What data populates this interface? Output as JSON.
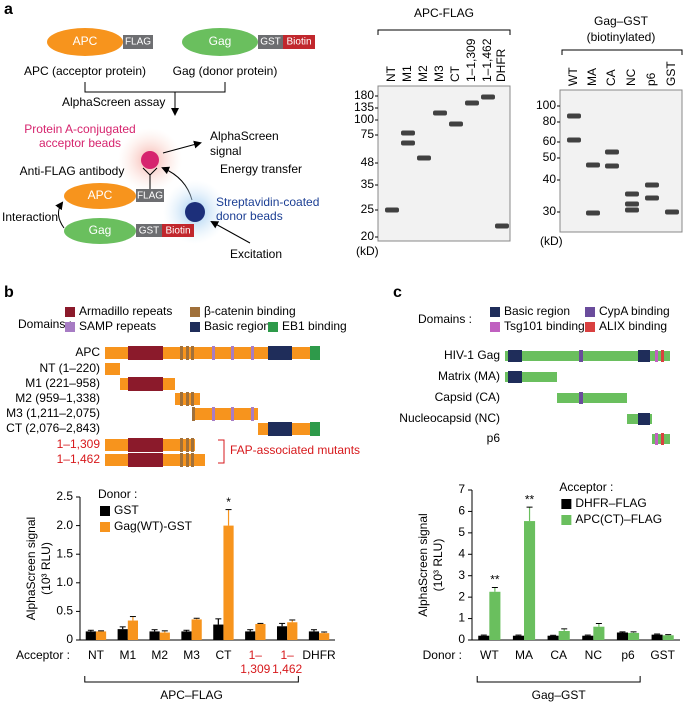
{
  "panel_labels": [
    "a",
    "b",
    "c"
  ],
  "panel_a": {
    "apc": "APC",
    "flag": "FLAG",
    "gag": "Gag",
    "gst": "GST",
    "biotin": "Biotin",
    "apc_caption": "APC (acceptor protein)",
    "gag_caption": "Gag (donor protein)",
    "assay": "AlphaScreen assay",
    "acceptor_beads": [
      "Protein A-conjugated",
      "acceptor beads"
    ],
    "signal": [
      "AlphaScreen",
      "signal"
    ],
    "antibody": "Anti-FLAG antibody",
    "energy": "Energy transfer",
    "donor_beads": [
      "Streptavidin-coated",
      "donor beads"
    ],
    "interaction": "Interaction",
    "excitation": "Excitation"
  },
  "blot_apc": {
    "title": [
      "APC-FLAG"
    ],
    "lanes": [
      "NT",
      "M1",
      "M2",
      "M3",
      "CT",
      "1–1,309",
      "1–1,462",
      "DHFR"
    ],
    "markers": [
      "180",
      "135",
      "100",
      "75",
      "48",
      "35",
      "25",
      "20"
    ],
    "unit": "(kD)"
  },
  "blot_gag": {
    "title": [
      "Gag–GST",
      "(biotinylated)"
    ],
    "lanes": [
      "WT",
      "MA",
      "CA",
      "NC",
      "p6",
      "GST"
    ],
    "markers": [
      "100",
      "80",
      "60",
      "50",
      "40",
      "30"
    ],
    "unit": "(kD)"
  },
  "domains_b": {
    "label": "Domains :",
    "legend": [
      {
        "name": "Armadillo repeats",
        "color": "#8b1a2b"
      },
      {
        "name": "β-catenin binding",
        "color": "#a0703a"
      },
      {
        "name": "SAMP repeats",
        "color": "#a77cc4"
      },
      {
        "name": "Basic region",
        "color": "#1f2d5a"
      },
      {
        "name": "EB1 binding",
        "color": "#2e9a4a"
      }
    ],
    "rows": [
      {
        "label": "APC",
        "color": "#000000"
      },
      {
        "label": "NT (1–220)",
        "color": "#000000"
      },
      {
        "label": "M1 (221–958)",
        "color": "#000000"
      },
      {
        "label": "M2 (959–1,338)",
        "color": "#000000"
      },
      {
        "label": "M3 (1,211–2,075)",
        "color": "#000000"
      },
      {
        "label": "CT (2,076–2,843)",
        "color": "#000000"
      },
      {
        "label": "1–1,309",
        "color": "#d7191c"
      },
      {
        "label": "1–1,462",
        "color": "#d7191c"
      }
    ],
    "bar_color": "#f7941d",
    "annotation": "FAP-associated mutants"
  },
  "domains_c": {
    "label": "Domains :",
    "legend": [
      {
        "name": "Basic region",
        "color": "#1f2d5a"
      },
      {
        "name": "CypA binding",
        "color": "#6a4c9c"
      },
      {
        "name": "Tsg101 binding",
        "color": "#c060c0"
      },
      {
        "name": "ALIX binding",
        "color": "#d94040"
      }
    ],
    "rows": [
      {
        "label": "HIV-1 Gag",
        "color": "#000000"
      },
      {
        "label": "Matrix (MA)",
        "color": "#000000"
      },
      {
        "label": "Capsid (CA)",
        "color": "#000000"
      },
      {
        "label": "Nucleocapsid (NC)",
        "color": "#000000"
      },
      {
        "label": "p6",
        "color": "#000000"
      }
    ],
    "bar_color": "#6abf5e"
  },
  "chart_data": [
    {
      "type": "bar",
      "ylabel": [
        "AlphaScreen signal",
        "(10³ RLU)"
      ],
      "xlabel": "Acceptor :",
      "group_label": "APC–FLAG",
      "categories": [
        "NT",
        "M1",
        "M2",
        "M3",
        "CT",
        "1–1,309",
        "1–1,462",
        "DHFR"
      ],
      "category_colors": [
        "#000000",
        "#000000",
        "#000000",
        "#000000",
        "#000000",
        "#d7191c",
        "#d7191c",
        "#000000"
      ],
      "ylim": [
        0,
        2.5
      ],
      "yticks": [
        0,
        0.5,
        {
          "value": 1,
          "label": "1.0"
        },
        1.5,
        {
          "value": 2,
          "label": "2.0"
        },
        2.5
      ],
      "legend_title": "Donor :",
      "legend": "upper left",
      "series": [
        {
          "name": "GST",
          "color": "#000000",
          "values": [
            0.15,
            0.19,
            0.15,
            0.15,
            0.27,
            0.15,
            0.24,
            0.15
          ],
          "errors": [
            0.02,
            0.04,
            0.03,
            0.02,
            0.1,
            0.03,
            0.05,
            0.03
          ]
        },
        {
          "name": "Gag(WT)-GST",
          "color": "#f7941d",
          "values": [
            0.15,
            0.34,
            0.13,
            0.36,
            2.0,
            0.28,
            0.31,
            0.12
          ],
          "errors": [
            0.01,
            0.07,
            0.03,
            0.02,
            0.28,
            0.01,
            0.04,
            0.02
          ]
        }
      ],
      "annotations": [
        {
          "label": "*",
          "category": "CT"
        }
      ]
    },
    {
      "type": "bar",
      "ylabel": [
        "AlphaScreen signal",
        "(10³ RLU)"
      ],
      "xlabel": "Donor :",
      "group_label": "Gag–GST",
      "categories": [
        "WT",
        "MA",
        "CA",
        "NC",
        "p6",
        "GST"
      ],
      "ylim": [
        0,
        7
      ],
      "yticks": [
        0,
        1,
        2,
        3,
        4,
        5,
        6,
        7
      ],
      "legend_title": "Acceptor :",
      "legend": "upper right",
      "series": [
        {
          "name": "DHFR–FLAG",
          "color": "#000000",
          "values": [
            0.2,
            0.2,
            0.2,
            0.2,
            0.35,
            0.25
          ],
          "errors": [
            0.03,
            0.03,
            0.02,
            0.03,
            0.03,
            0.03
          ]
        },
        {
          "name": "APC(CT)–FLAG",
          "color": "#6abf5e",
          "values": [
            2.25,
            5.55,
            0.42,
            0.62,
            0.33,
            0.22
          ],
          "errors": [
            0.2,
            0.65,
            0.1,
            0.15,
            0.05,
            0.03
          ]
        }
      ],
      "annotations": [
        {
          "label": "**",
          "category": "WT"
        },
        {
          "label": "**",
          "category": "MA"
        }
      ]
    }
  ]
}
